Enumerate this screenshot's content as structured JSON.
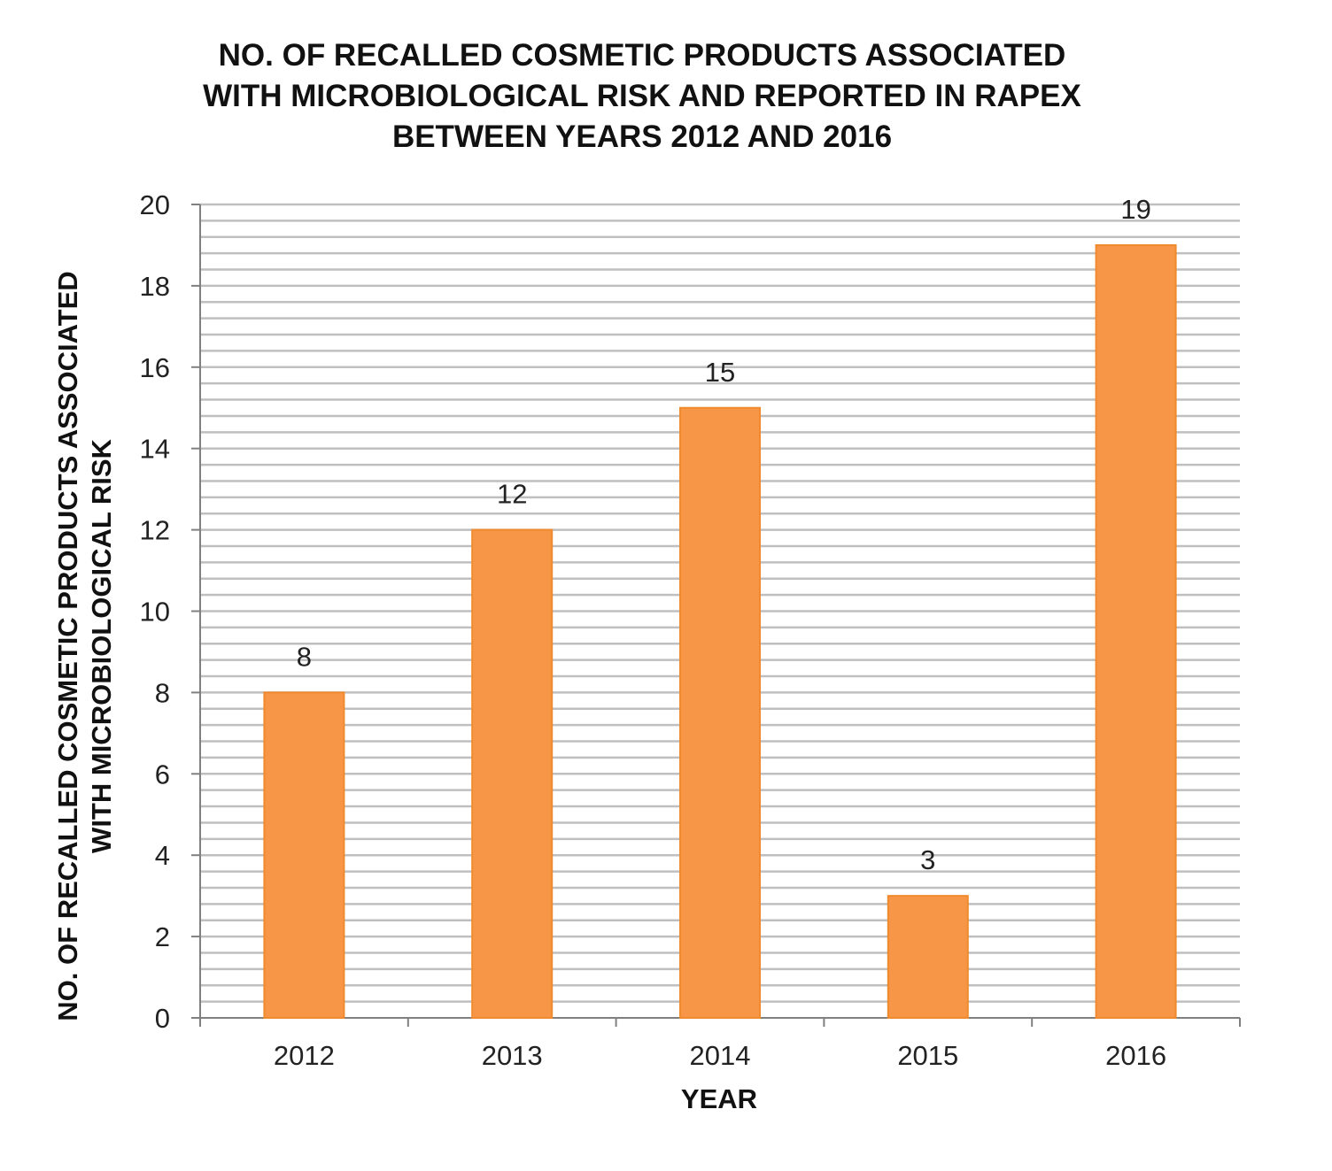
{
  "chart_data": {
    "type": "bar",
    "title": "NO. OF RECALLED COSMETIC PRODUCTS ASSOCIATED\nWITH MICROBIOLOGICAL  RISK AND REPORTED IN RAPEX\nBETWEEN YEARS 2012 AND 2016",
    "xlabel": "YEAR",
    "ylabel": "NO. OF RECALLED COSMETIC PRODUCTS ASSOCIATED\nWITH MICROBIOLOGICAL RISK",
    "categories": [
      "2012",
      "2013",
      "2014",
      "2015",
      "2016"
    ],
    "values": [
      8,
      12,
      15,
      3,
      19
    ],
    "data_labels": [
      "8",
      "12",
      "15",
      "3",
      "19"
    ],
    "ylim": [
      0,
      20
    ],
    "yticks": [
      0,
      2,
      4,
      6,
      8,
      10,
      12,
      14,
      16,
      18,
      20
    ],
    "minor_grid_step": 0.4,
    "grid": true,
    "legend": "none",
    "colors": {
      "bar": "#F79646",
      "bar_border": "#F08A2E",
      "grid": "#BFBFBF",
      "axis": "#808080"
    }
  }
}
